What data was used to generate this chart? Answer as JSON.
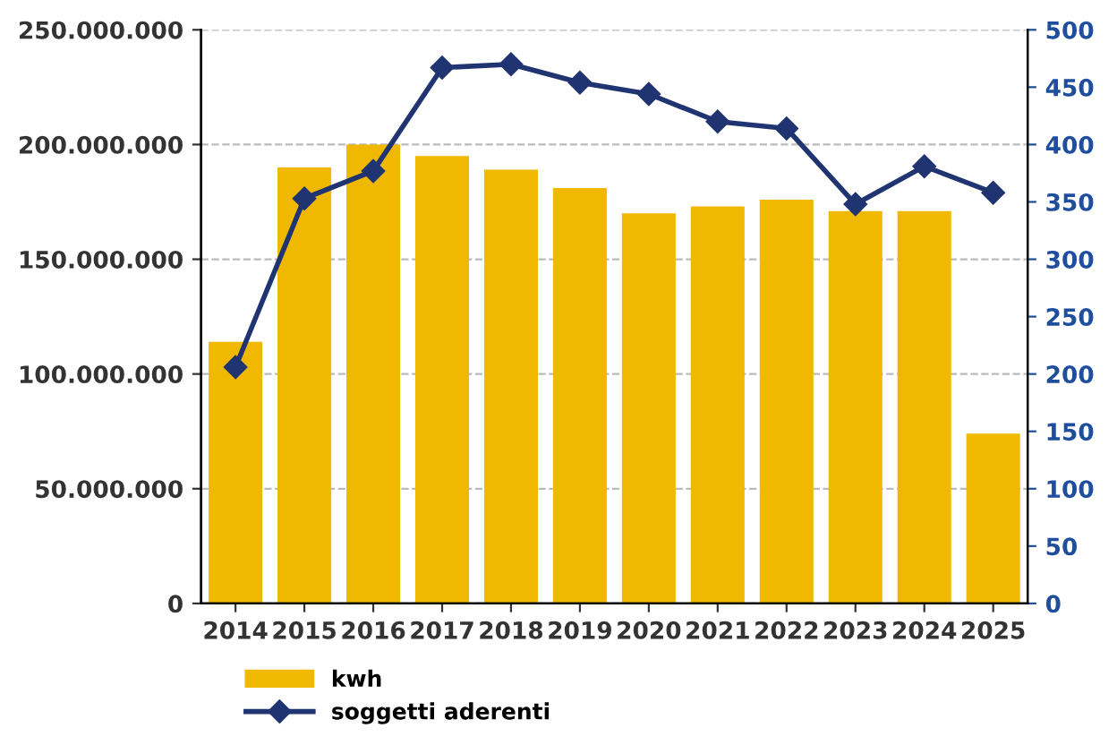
{
  "chart_data": {
    "type": "bar",
    "categories": [
      "2014",
      "2015",
      "2016",
      "2017",
      "2018",
      "2019",
      "2020",
      "2021",
      "2022",
      "2023",
      "2024",
      "2025"
    ],
    "series": [
      {
        "name": "kwh",
        "color": "#f0b800",
        "values": [
          114000000,
          190000000,
          200000000,
          195000000,
          189000000,
          181000000,
          170000000,
          173000000,
          176000000,
          171000000,
          171000000,
          74000000
        ]
      },
      {
        "name": "soggetti aderenti",
        "type": "line",
        "axis": "y2",
        "color": "#1f3470",
        "marker": "diamond",
        "values": [
          206,
          353,
          377,
          467,
          470,
          454,
          444,
          420,
          414,
          348,
          381,
          358
        ]
      }
    ],
    "ylim": [
      0,
      250000000
    ],
    "yticks": [
      0,
      {
        "value": 50000000,
        "label": "50.000.000"
      },
      {
        "value": 100000000,
        "label": "100.000.000"
      },
      {
        "value": 150000000,
        "label": "150.000.000"
      },
      {
        "value": 200000000,
        "label": "200.000.000"
      },
      {
        "value": 250000000,
        "label": "250.000.000"
      }
    ],
    "y2lim": [
      0,
      500
    ],
    "y2ticks": [
      0,
      50,
      100,
      150,
      200,
      250,
      300,
      350,
      400,
      450,
      500
    ],
    "grid": "y",
    "legend": "bottom left"
  }
}
